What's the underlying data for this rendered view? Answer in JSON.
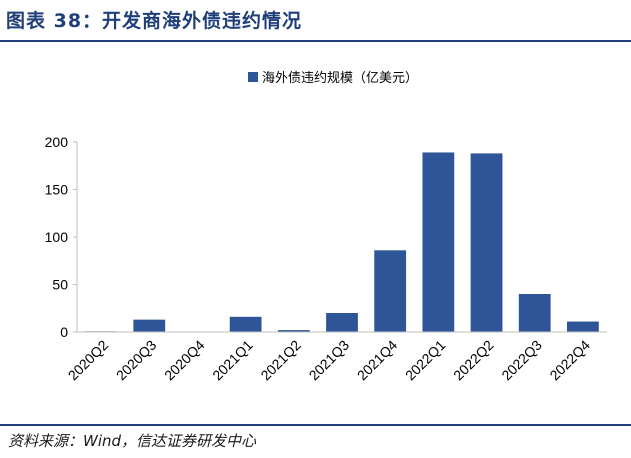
{
  "figure": {
    "title": "图表 38：开发商海外债违约情况",
    "source": "资料来源：Wind，信达证券研发中心"
  },
  "chart_data": {
    "type": "bar",
    "categories": [
      "2020Q2",
      "2020Q3",
      "2020Q4",
      "2021Q1",
      "2021Q2",
      "2021Q3",
      "2021Q4",
      "2022Q1",
      "2022Q2",
      "2022Q3",
      "2022Q4"
    ],
    "series": [
      {
        "name": "海外债违约规模（亿美元）",
        "values": [
          0.5,
          13,
          0,
          16,
          2,
          20,
          86,
          189,
          188,
          40,
          11
        ],
        "color": "#2e5597"
      }
    ],
    "ylim": [
      0,
      200
    ],
    "yticks": [
      0,
      50,
      100,
      150,
      200
    ],
    "grid": false,
    "legend_position": "top-right"
  }
}
